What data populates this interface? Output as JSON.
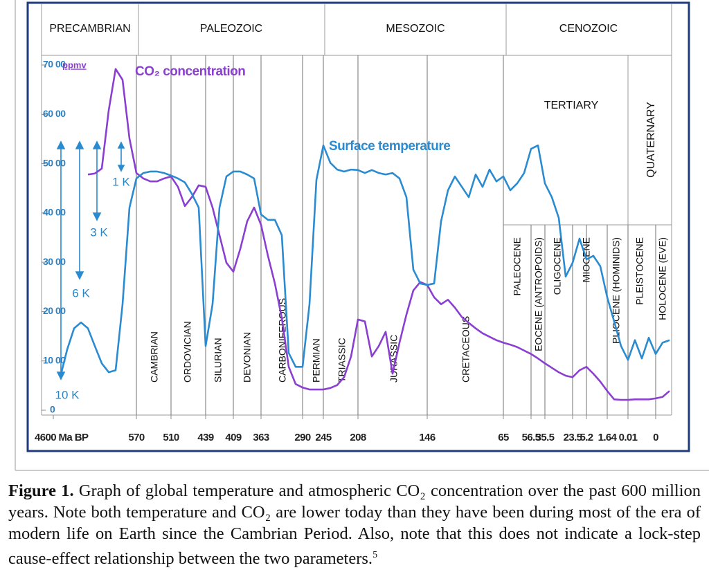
{
  "chart_data": {
    "type": "line",
    "eras": [
      "PRECAMBRIAN",
      "PALEOZOIC",
      "MESOZOIC",
      "CENOZOIC"
    ],
    "sub_eras": [
      "TERTIARY",
      "QUATERNARY"
    ],
    "periods": [
      "CAMBRIAN",
      "ORDOVICIAN",
      "SILURIAN",
      "DEVONIAN",
      "CARBONIFEROUS",
      "PERMIAN",
      "TRIASSIC",
      "JURASSIC",
      "CRETACEOUS"
    ],
    "epochs": [
      "PALEOCENE",
      "EOCENE (ANTROPOIDS)",
      "OLIGOCENE",
      "MIOCENE",
      "PLIOCENE (HOMINIDS)",
      "PLEISTOCENE",
      "HOLOCENE (EVE)"
    ],
    "y_unit": "ppmv",
    "annotations": [
      "1 K",
      "3 K",
      "6 K",
      "10 K"
    ],
    "categories": [
      "4600 Ma BP",
      null,
      null,
      null,
      null,
      null,
      null,
      null,
      null,
      null,
      null,
      null,
      "570",
      null,
      null,
      null,
      null,
      "510",
      null,
      null,
      null,
      null,
      "439",
      null,
      null,
      null,
      "409",
      null,
      null,
      null,
      "363",
      null,
      null,
      null,
      null,
      null,
      "290",
      null,
      null,
      "245",
      null,
      null,
      null,
      null,
      "208",
      null,
      null,
      null,
      null,
      null,
      null,
      null,
      null,
      null,
      "146",
      null,
      null,
      null,
      null,
      null,
      null,
      null,
      null,
      null,
      null,
      "65",
      null,
      null,
      null,
      "56.5",
      null,
      "35.5",
      null,
      null,
      null,
      "23.5",
      null,
      "5.2",
      null,
      null,
      "1.64",
      null,
      null,
      "0.01",
      null,
      null,
      null,
      "0",
      null,
      null,
      null
    ],
    "series": [
      {
        "name": "CO₂ concentration",
        "color": "#8a3fd1",
        "values": [
          null,
          null,
          null,
          null,
          null,
          4780,
          4800,
          4900,
          6080,
          6920,
          6700,
          5510,
          4810,
          4700,
          4640,
          4640,
          4700,
          4740,
          4530,
          4140,
          4320,
          4560,
          4530,
          4110,
          3550,
          2990,
          2810,
          3270,
          3830,
          4110,
          3760,
          3130,
          2570,
          1870,
          880,
          530,
          460,
          420,
          420,
          420,
          450,
          510,
          670,
          1090,
          1840,
          1800,
          1090,
          1300,
          1590,
          740,
          1370,
          1940,
          2430,
          2600,
          2540,
          2290,
          2150,
          2240,
          2080,
          1890,
          1770,
          1660,
          1560,
          1490,
          1420,
          1370,
          1330,
          1280,
          1210,
          1140,
          1050,
          950,
          860,
          770,
          700,
          670,
          810,
          880,
          740,
          580,
          390,
          220,
          210,
          210,
          220,
          220,
          220,
          240,
          270,
          390,
          null
        ]
      },
      {
        "name": "Surface temperature",
        "color": "#2a8bd0",
        "values": [
          null,
          670,
          1230,
          1660,
          1780,
          1660,
          1300,
          950,
          770,
          810,
          2150,
          4110,
          4700,
          4810,
          4840,
          4840,
          4810,
          4760,
          4700,
          4620,
          4390,
          4110,
          1300,
          2150,
          4110,
          4740,
          4840,
          4840,
          4780,
          4700,
          3970,
          3860,
          3860,
          3550,
          1160,
          880,
          880,
          2150,
          4670,
          5370,
          5020,
          4880,
          4840,
          4880,
          4870,
          4810,
          4870,
          4810,
          4780,
          4810,
          4700,
          4320,
          2850,
          2570,
          2540,
          2570,
          3830,
          4460,
          4740,
          4530,
          4320,
          4780,
          4530,
          4880,
          4640,
          4740,
          4460,
          4600,
          4810,
          5300,
          5370,
          4600,
          4320,
          3900,
          2710,
          2990,
          3480,
          3060,
          3130,
          2920,
          2290,
          1800,
          1300,
          1020,
          1420,
          1050,
          1470,
          1140,
          1370,
          1420,
          null
        ]
      }
    ],
    "ylim": [
      0,
      7000
    ],
    "yticks": [
      0,
      {
        "value": 1000,
        "label": "10 00"
      },
      {
        "value": 2000,
        "label": "20 00"
      },
      {
        "value": 3000,
        "label": "30 00"
      },
      {
        "value": 4000,
        "label": "40 00"
      },
      {
        "value": 5000,
        "label": "50 00"
      },
      {
        "value": 6000,
        "label": "60 00"
      },
      {
        "value": 7000,
        "label": "70 00"
      }
    ]
  },
  "caption": {
    "label": "Figure 1.",
    "text": "Graph of global temperature and atmospheric CO₂ concentration over the past 600 million years. Note both temperature and CO₂ are lower today than they have been during most of the era of modern life on Earth since the Cambrian Period. Also, note that this does not indicate a lock-step cause-effect relationship between the two parameters.",
    "footnote": "5"
  }
}
